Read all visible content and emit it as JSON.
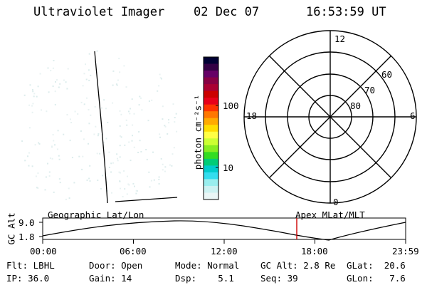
{
  "header": {
    "instrument": "Ultraviolet Imager",
    "date": "02 Dec 07",
    "time": "16:53:59 UT"
  },
  "colorbar": {
    "label": "photon cm⁻²s⁻¹",
    "tick_labels": [
      "100",
      "10"
    ],
    "colors": [
      "#000033",
      "#330044",
      "#660066",
      "#880044",
      "#aa0033",
      "#cc0000",
      "#e8001a",
      "#ff3300",
      "#ff7700",
      "#ffaa00",
      "#ffdd00",
      "#ffff44",
      "#ccff33",
      "#88ee22",
      "#33dd22",
      "#00cc77",
      "#00cccc",
      "#33ddee",
      "#99eeee",
      "#ccf2f2",
      "#eaf6f6"
    ]
  },
  "polar_plot": {
    "labels": {
      "top": "12",
      "bottom": "0",
      "left": "18",
      "right": "6",
      "lat_60": "60",
      "lat_70": "70",
      "lat_80": "80"
    }
  },
  "timeline": {
    "ylabel": "GC Alt",
    "ytick_top": "9.0",
    "ytick_bottom": "1.8",
    "left_label": "Geographic Lat/Lon",
    "right_label": "Apex MLat/MLT",
    "x_ticks": [
      "00:00",
      "06:00",
      "12:00",
      "18:00",
      "23:59"
    ],
    "current_time_marker": "16:53:59",
    "marker_color": "#cc0000"
  },
  "status": {
    "flt_label": "Flt:",
    "flt_value": "LBHL",
    "ip_label": "IP:",
    "ip_value": "36.0",
    "door_label": "Door:",
    "door_value": "Open",
    "gain_label": "Gain:",
    "gain_value": "14",
    "mode_label": "Mode:",
    "mode_value": "Normal",
    "dsp_label": "Dsp:",
    "dsp_value": "5.1",
    "gcalt_label": "GC Alt:",
    "gcalt_value": "2.8 Re",
    "seq_label": "Seq:",
    "seq_value": "39",
    "glat_label": "GLat:",
    "glat_value": "20.6",
    "glon_label": "GLon:",
    "glon_value": "7.6"
  }
}
